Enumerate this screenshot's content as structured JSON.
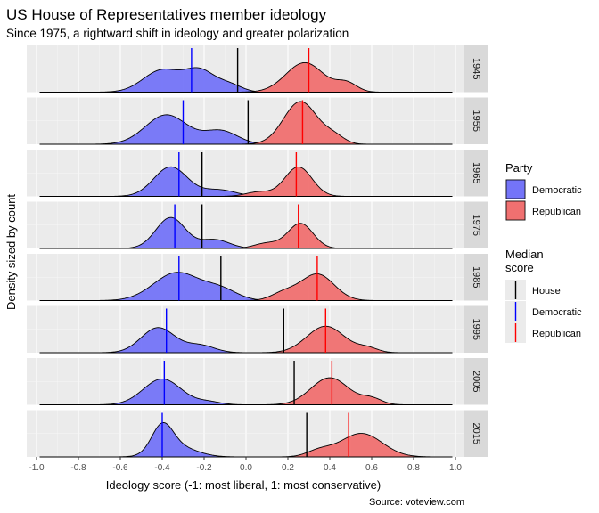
{
  "chart_data": {
    "type": "area",
    "title": "US House of Representatives member ideology",
    "subtitle": "Since 1975, a rightward shift in ideology and greater polarization",
    "xlabel": "Ideology score (-1: most liberal, 1: most conservative)",
    "ylabel": "Density sized by count",
    "caption": "Source: voteview.com",
    "xlim": [
      -1.0,
      1.0
    ],
    "x_ticks": [
      "-1.0",
      "-0.8",
      "-0.6",
      "-0.4",
      "-0.2",
      "0.0",
      "0.2",
      "0.4",
      "0.6",
      "0.8",
      "1.0"
    ],
    "x_tick_values": [
      -1.0,
      -0.8,
      -0.6,
      -0.4,
      -0.2,
      0.0,
      0.2,
      0.4,
      0.6,
      0.8,
      1.0
    ],
    "grid": true,
    "legend_placement": "right",
    "legends": [
      {
        "title": "Party",
        "items": [
          {
            "label": "Democratic",
            "color": "#7474f8"
          },
          {
            "label": "Republican",
            "color": "#f07070"
          }
        ]
      },
      {
        "title": "Median score",
        "items": [
          {
            "label": "House",
            "color": "#000000"
          },
          {
            "label": "Democratic",
            "color": "#0000ff"
          },
          {
            "label": "Republican",
            "color": "#ff0000"
          }
        ]
      }
    ],
    "colors": {
      "democratic_fill": "#7474f8",
      "republican_fill": "#f07070",
      "democratic_median": "#0000ff",
      "republican_median": "#ff0000",
      "house_median": "#000000",
      "panel_bg": "#ebebeb",
      "strip_bg": "#d9d9d9"
    },
    "panels": [
      {
        "year": "1945",
        "house_median": -0.04,
        "dem_median": -0.26,
        "rep_median": 0.3,
        "dem": {
          "modes": [
            [
              -0.4,
              0.09,
              0.75
            ],
            [
              -0.22,
              0.07,
              0.7
            ],
            [
              -0.08,
              0.06,
              0.25
            ]
          ]
        },
        "rep": {
          "modes": [
            [
              0.28,
              0.09,
              1.0
            ],
            [
              0.48,
              0.05,
              0.3
            ]
          ]
        }
      },
      {
        "year": "1955",
        "house_median": 0.01,
        "dem_median": -0.3,
        "rep_median": 0.27,
        "dem": {
          "modes": [
            [
              -0.38,
              0.1,
              1.0
            ],
            [
              -0.12,
              0.08,
              0.45
            ]
          ]
        },
        "rep": {
          "modes": [
            [
              0.26,
              0.08,
              1.45
            ],
            [
              0.42,
              0.05,
              0.25
            ]
          ]
        }
      },
      {
        "year": "1965",
        "house_median": -0.21,
        "dem_median": -0.32,
        "rep_median": 0.24,
        "dem": {
          "modes": [
            [
              -0.36,
              0.08,
              1.0
            ],
            [
              -0.13,
              0.08,
              0.22
            ]
          ]
        },
        "rep": {
          "modes": [
            [
              0.25,
              0.065,
              1.0
            ],
            [
              0.06,
              0.06,
              0.15
            ]
          ]
        }
      },
      {
        "year": "1975",
        "house_median": -0.21,
        "dem_median": -0.34,
        "rep_median": 0.25,
        "dem": {
          "modes": [
            [
              -0.36,
              0.07,
              1.05
            ],
            [
              -0.15,
              0.07,
              0.3
            ]
          ]
        },
        "rep": {
          "modes": [
            [
              0.26,
              0.06,
              0.85
            ],
            [
              0.1,
              0.06,
              0.18
            ]
          ]
        }
      },
      {
        "year": "1985",
        "house_median": -0.12,
        "dem_median": -0.32,
        "rep_median": 0.34,
        "dem": {
          "modes": [
            [
              -0.33,
              0.11,
              0.95
            ],
            [
              -0.12,
              0.08,
              0.35
            ]
          ]
        },
        "rep": {
          "modes": [
            [
              0.34,
              0.08,
              0.9
            ],
            [
              0.18,
              0.06,
              0.25
            ]
          ]
        }
      },
      {
        "year": "1995",
        "house_median": 0.18,
        "dem_median": -0.38,
        "rep_median": 0.38,
        "dem": {
          "modes": [
            [
              -0.42,
              0.08,
              0.85
            ],
            [
              -0.22,
              0.07,
              0.25
            ]
          ]
        },
        "rep": {
          "modes": [
            [
              0.38,
              0.09,
              0.9
            ],
            [
              0.58,
              0.05,
              0.15
            ]
          ]
        }
      },
      {
        "year": "2005",
        "house_median": 0.23,
        "dem_median": -0.39,
        "rep_median": 0.41,
        "dem": {
          "modes": [
            [
              -0.4,
              0.09,
              0.88
            ],
            [
              -0.18,
              0.06,
              0.1
            ]
          ]
        },
        "rep": {
          "modes": [
            [
              0.4,
              0.09,
              0.92
            ],
            [
              0.6,
              0.05,
              0.2
            ]
          ]
        }
      },
      {
        "year": "2015",
        "house_median": 0.29,
        "dem_median": -0.4,
        "rep_median": 0.49,
        "dem": {
          "modes": [
            [
              -0.4,
              0.05,
              0.9
            ],
            [
              -0.33,
              0.09,
              0.35
            ]
          ]
        },
        "rep": {
          "modes": [
            [
              0.55,
              0.1,
              0.8
            ],
            [
              0.35,
              0.06,
              0.2
            ]
          ]
        }
      }
    ]
  }
}
